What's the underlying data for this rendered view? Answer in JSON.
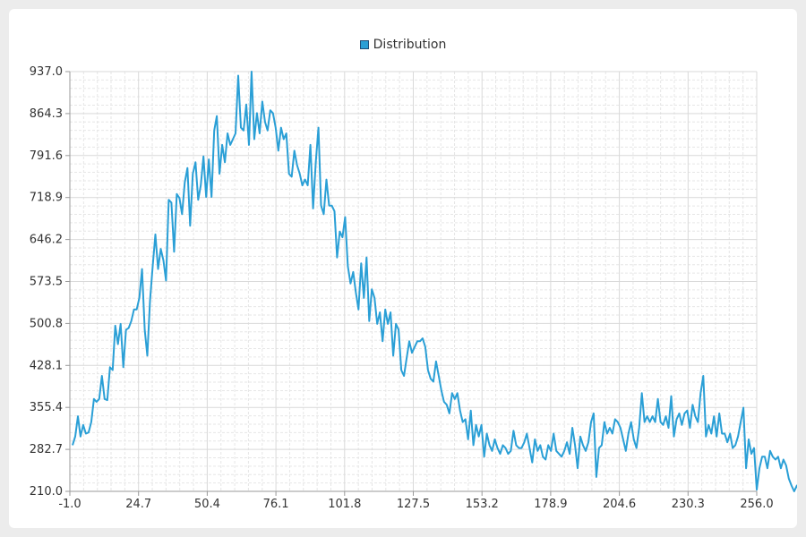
{
  "chart_data": {
    "type": "line",
    "title": "",
    "xlabel": "",
    "ylabel": "",
    "xlim": [
      -1.0,
      256.0
    ],
    "ylim": [
      210.0,
      937.0
    ],
    "x_ticks": [
      "-1.0",
      "24.7",
      "50.4",
      "76.1",
      "101.8",
      "127.5",
      "153.2",
      "178.9",
      "204.6",
      "230.3",
      "256.0"
    ],
    "y_ticks": [
      "210.0",
      "282.7",
      "355.4",
      "428.1",
      "500.8",
      "573.5",
      "646.2",
      "718.9",
      "791.6",
      "864.3",
      "937.0"
    ],
    "grid": true,
    "legend": "top-center",
    "series": [
      {
        "name": "Distribution",
        "color": "#2a9fd6",
        "x_start": 0,
        "x_step": 1,
        "values": [
          290,
          305,
          340,
          305,
          325,
          310,
          312,
          330,
          370,
          365,
          370,
          410,
          370,
          368,
          425,
          420,
          497,
          465,
          500,
          425,
          490,
          493,
          505,
          525,
          525,
          545,
          595,
          490,
          445,
          540,
          600,
          655,
          595,
          630,
          610,
          575,
          715,
          710,
          625,
          725,
          718,
          690,
          745,
          770,
          670,
          760,
          780,
          715,
          740,
          790,
          720,
          785,
          720,
          835,
          860,
          760,
          810,
          780,
          830,
          810,
          820,
          830,
          930,
          840,
          835,
          880,
          810,
          937,
          820,
          865,
          830,
          885,
          850,
          835,
          870,
          865,
          840,
          800,
          840,
          820,
          830,
          760,
          755,
          800,
          775,
          760,
          740,
          750,
          740,
          810,
          700,
          780,
          840,
          705,
          690,
          750,
          705,
          705,
          695,
          615,
          660,
          650,
          685,
          600,
          570,
          590,
          555,
          525,
          605,
          545,
          615,
          505,
          560,
          545,
          500,
          520,
          470,
          525,
          500,
          520,
          445,
          500,
          490,
          420,
          410,
          440,
          470,
          450,
          460,
          470,
          470,
          475,
          460,
          420,
          405,
          400,
          435,
          410,
          385,
          365,
          360,
          345,
          380,
          370,
          380,
          350,
          330,
          335,
          300,
          350,
          290,
          325,
          305,
          325,
          270,
          310,
          290,
          280,
          300,
          285,
          275,
          290,
          285,
          275,
          280,
          315,
          290,
          285,
          285,
          295,
          310,
          285,
          260,
          300,
          280,
          290,
          270,
          265,
          290,
          280,
          310,
          280,
          275,
          270,
          280,
          295,
          275,
          320,
          290,
          250,
          305,
          290,
          280,
          295,
          330,
          345,
          235,
          285,
          290,
          330,
          310,
          320,
          310,
          335,
          330,
          320,
          300,
          280,
          310,
          330,
          300,
          285,
          320,
          380,
          330,
          340,
          330,
          340,
          330,
          370,
          330,
          325,
          340,
          320,
          375,
          305,
          335,
          345,
          325,
          345,
          350,
          320,
          360,
          340,
          330,
          380,
          410,
          305,
          325,
          310,
          340,
          305,
          345,
          310,
          310,
          295,
          310,
          285,
          290,
          305,
          330,
          355,
          250,
          300,
          275,
          285,
          213,
          250,
          270,
          270,
          250,
          280,
          270,
          265,
          270,
          250,
          265,
          255,
          232,
          220,
          205,
          220,
          210,
          215,
          235,
          250,
          245,
          230,
          220
        ]
      }
    ]
  }
}
